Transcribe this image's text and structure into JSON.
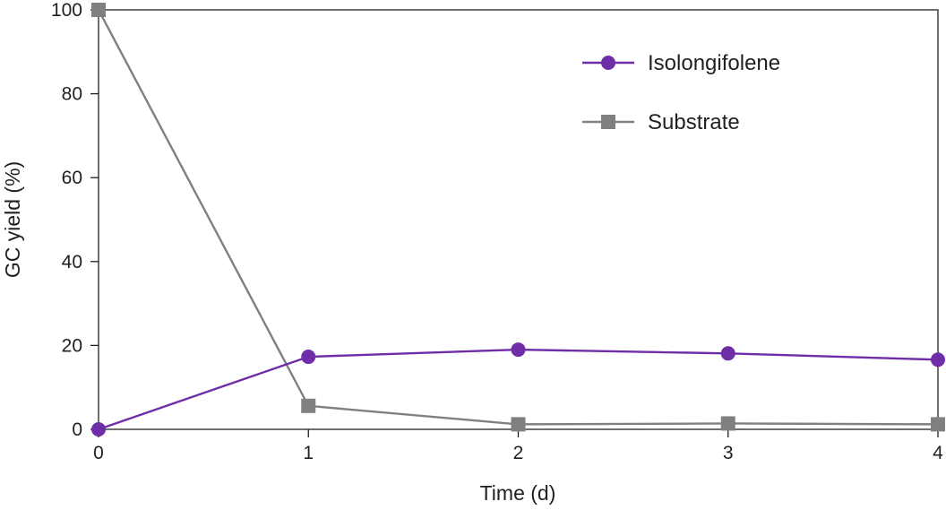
{
  "chart_data": {
    "type": "line",
    "title": "",
    "xlabel": "Time (d)",
    "ylabel": "GC yield (%)",
    "x": [
      0,
      1,
      2,
      3,
      4
    ],
    "xlim": [
      0,
      4
    ],
    "ylim": [
      0,
      100
    ],
    "xticks": [
      "0",
      "1",
      "2",
      "3",
      "4"
    ],
    "yticks": [
      "0",
      "20",
      "40",
      "60",
      "80",
      "100"
    ],
    "grid": false,
    "legend_position": "top-right",
    "series": [
      {
        "name": "Isolongifolene",
        "values": [
          0,
          17.3,
          19.0,
          18.1,
          16.6
        ],
        "color": "#6f2da8",
        "marker": "circle"
      },
      {
        "name": "Substrate",
        "values": [
          100,
          5.6,
          1.2,
          1.4,
          1.2
        ],
        "color": "#808080",
        "marker": "square"
      }
    ]
  }
}
